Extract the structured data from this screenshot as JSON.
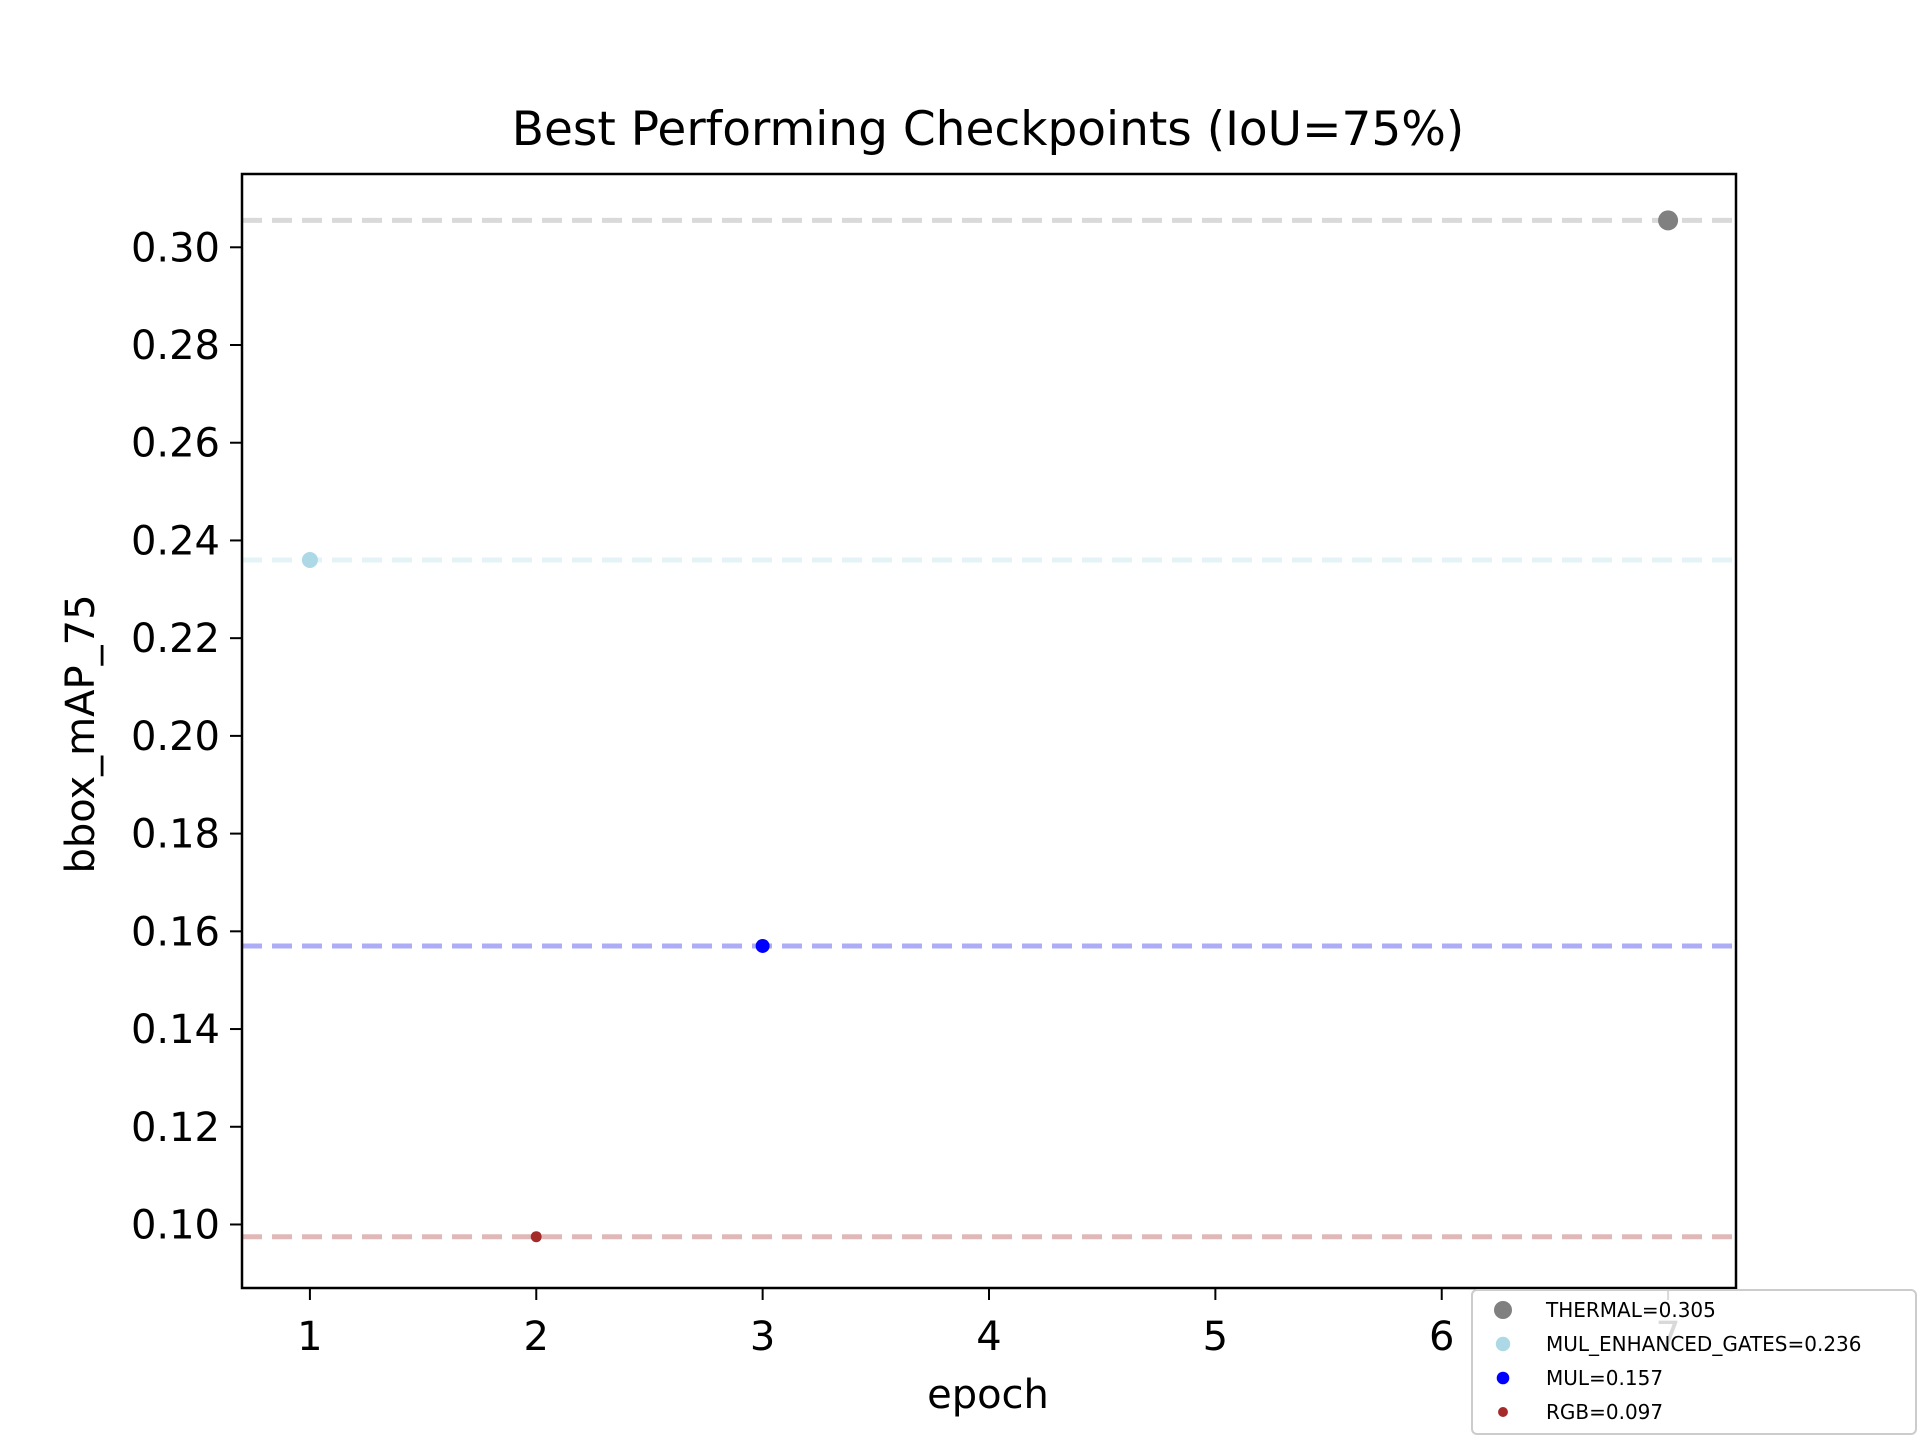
{
  "chart_data": {
    "type": "scatter",
    "title": "Best Performing Checkpoints (IoU=75%)",
    "xlabel": "epoch",
    "ylabel": "bbox_mAP_75",
    "xlim": [
      0.7,
      7.3
    ],
    "ylim": [
      0.087,
      0.315
    ],
    "xticks": [
      1,
      2,
      3,
      4,
      5,
      6,
      7
    ],
    "yticks": [
      0.1,
      0.12,
      0.14,
      0.16,
      0.18,
      0.2,
      0.22,
      0.24,
      0.26,
      0.28,
      0.3
    ],
    "grid": false,
    "legend_position": "lower-right",
    "series": [
      {
        "name": "THERMAL=0.305",
        "x": [
          7
        ],
        "y": [
          0.3055
        ],
        "color": "#808080",
        "line_color": "#d9d9d9",
        "marker": "large"
      },
      {
        "name": "MUL_ENHANCED_GATES=0.236",
        "x": [
          1
        ],
        "y": [
          0.236
        ],
        "color": "#add8e6",
        "line_color": "#e4f3f6",
        "marker": "medium"
      },
      {
        "name": "MUL=0.157",
        "x": [
          3
        ],
        "y": [
          0.157
        ],
        "color": "#0000ff",
        "line_color": "#adadf7",
        "marker": "small"
      },
      {
        "name": "RGB=0.097",
        "x": [
          2
        ],
        "y": [
          0.0975
        ],
        "color": "#a52a2a",
        "line_color": "#e0b8b8",
        "marker": "xsmall"
      }
    ]
  }
}
